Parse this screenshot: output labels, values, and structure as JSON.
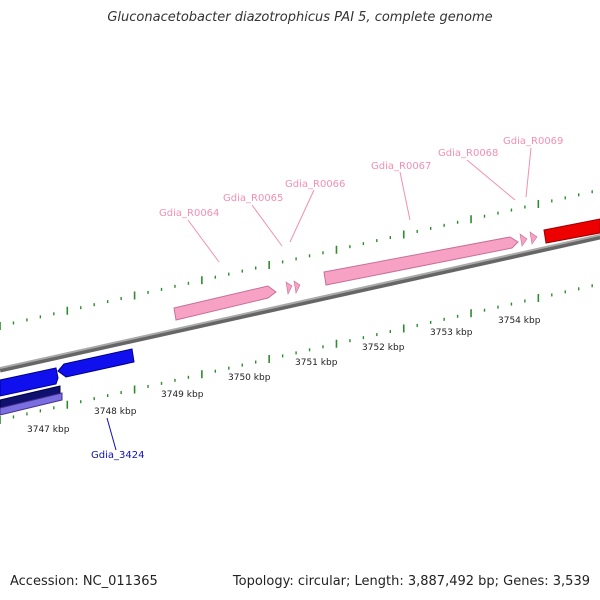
{
  "header": {
    "title": "Gluconacetobacter diazotrophicus PAI 5, complete genome"
  },
  "footer": {
    "accession": "Accession: NC_011365",
    "summary": "Topology: circular; Length: 3,887,492 bp; Genes: 3,539"
  },
  "colors": {
    "backbone": "#888888",
    "tick": "#2e8b2e",
    "rna_label": "#f48fb1",
    "rna_feature": "#f7a1c4",
    "cds_forward": "#ee0000",
    "cds_reverse": "#1010ee",
    "cds_dark": "#10106e",
    "cds_light": "#7b6ee0",
    "gene_label_blue": "#1010bb"
  },
  "scale": {
    "tick_labels": [
      "3747 kbp",
      "3748 kbp",
      "3749 kbp",
      "3750 kbp",
      "3751 kbp",
      "3752 kbp",
      "3753 kbp",
      "3754 kbp"
    ]
  },
  "rna_labels": [
    "Gdia_R0064",
    "Gdia_R0065",
    "Gdia_R0066",
    "Gdia_R0067",
    "Gdia_R0068",
    "Gdia_R0069"
  ],
  "gene_labels": [
    "Gdia_3424"
  ]
}
